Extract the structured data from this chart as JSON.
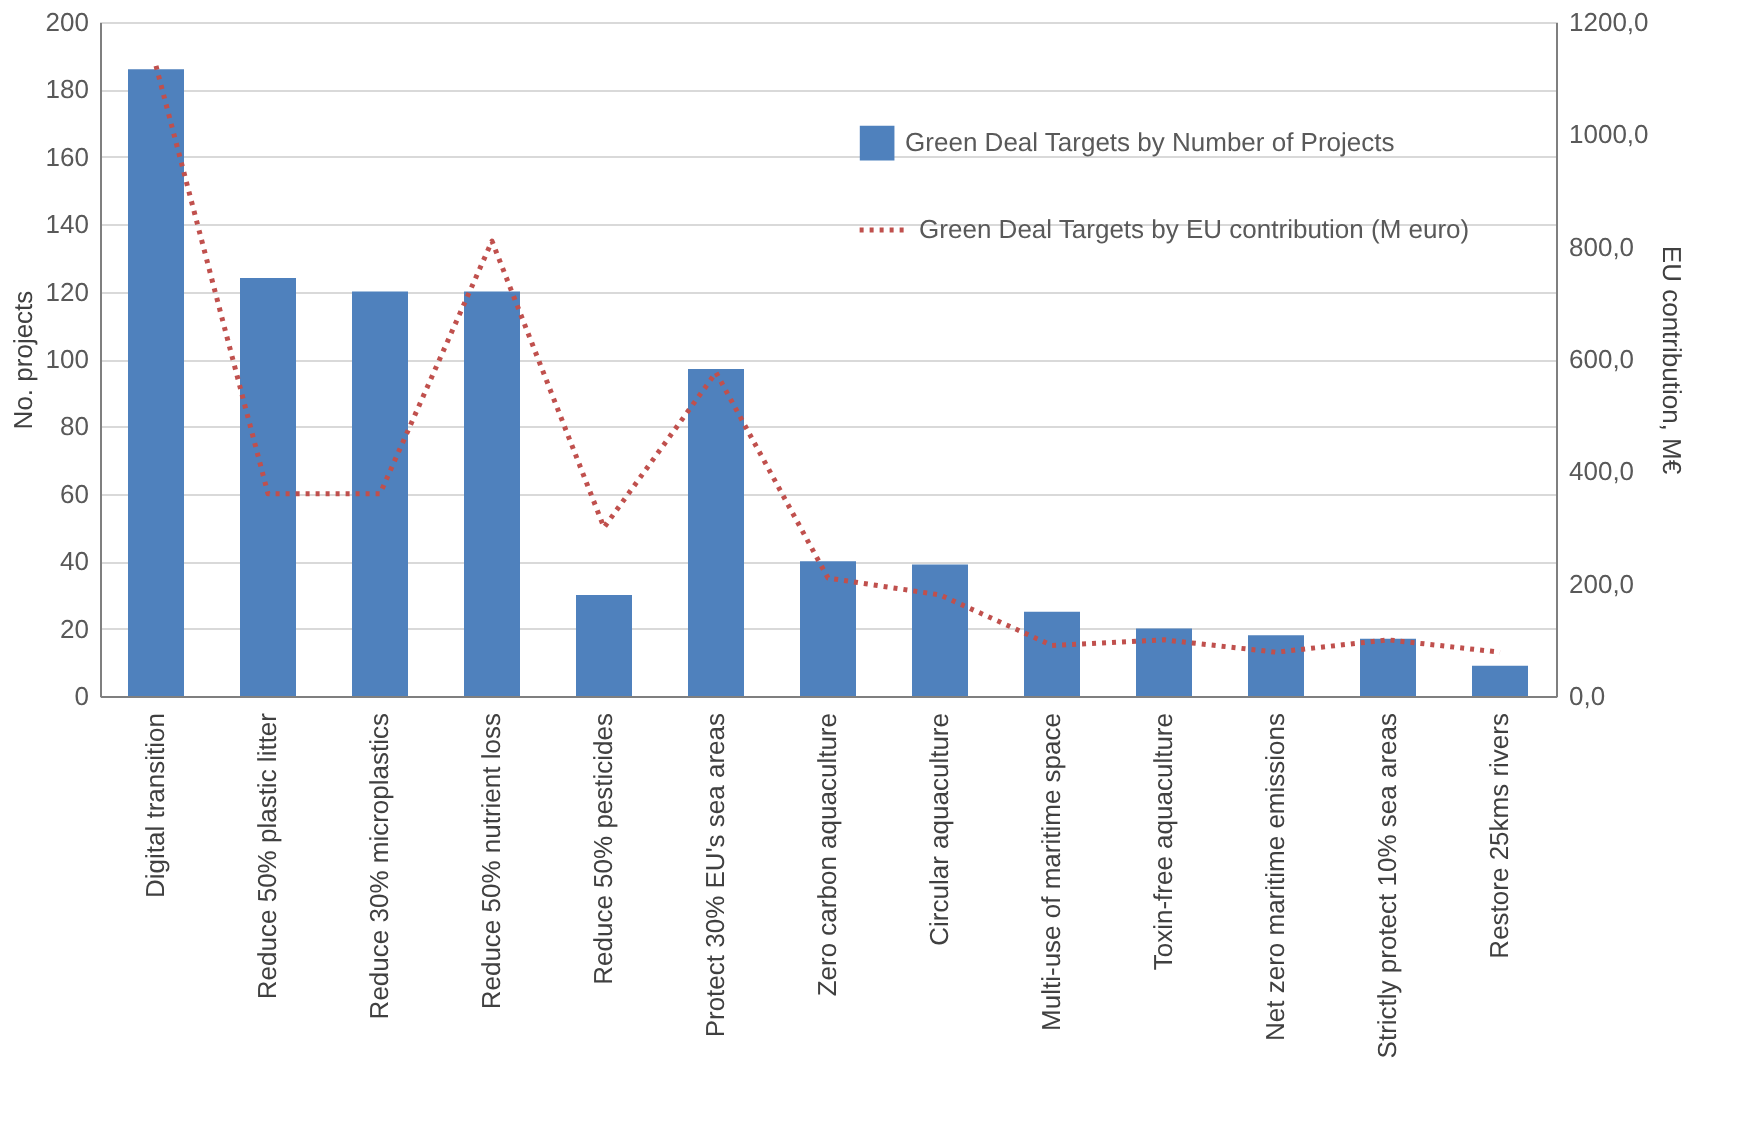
{
  "chart_data": {
    "type": "bar",
    "categories": [
      "Digital transition",
      "Reduce 50% plastic litter",
      "Reduce 30% microplastics",
      "Reduce 50% nutrient loss",
      "Reduce 50% pesticides",
      "Protect 30% EU's sea areas",
      "Zero carbon aquaculture",
      "Circular aquaculture",
      "Multi-use of maritime space",
      "Toxin-free aquaculture",
      "Net zero maritime emissions",
      "Strictly protect 10% sea areas",
      "Restore 25kms rivers"
    ],
    "series": [
      {
        "name": "Green Deal Targets by Number of Projects",
        "color": "#4f81bd",
        "values": [
          186,
          124,
          120,
          120,
          30,
          97,
          40,
          39,
          25,
          20,
          18,
          17,
          9
        ]
      },
      {
        "name": "Green Deal Targets by EU contribution (M euro)",
        "type": "line",
        "axis": "y2",
        "color": "#c0504d",
        "line_style": "dotted",
        "marker": "none",
        "values": [
          1122,
          360,
          360,
          810,
          300,
          576,
          210,
          180,
          90,
          100,
          78,
          100,
          78
        ]
      }
    ],
    "ylabel": "No. projects",
    "y2label": "EU contribution, M€",
    "ylim": [
      0,
      200
    ],
    "yticks": [
      0,
      20,
      40,
      60,
      80,
      100,
      120,
      140,
      160,
      180,
      200
    ],
    "y2lim": [
      0,
      1200
    ],
    "y2ticks": [
      {
        "value": 0,
        "label": "0,0"
      },
      {
        "value": 200,
        "label": "200,0"
      },
      {
        "value": 400,
        "label": "400,0"
      },
      {
        "value": 600,
        "label": "600,0"
      },
      {
        "value": 800,
        "label": "800,0"
      },
      {
        "value": 1000,
        "label": "1000,0"
      },
      {
        "value": 1200,
        "label": "1200,0"
      }
    ],
    "grid": "y",
    "legend": "top right"
  }
}
